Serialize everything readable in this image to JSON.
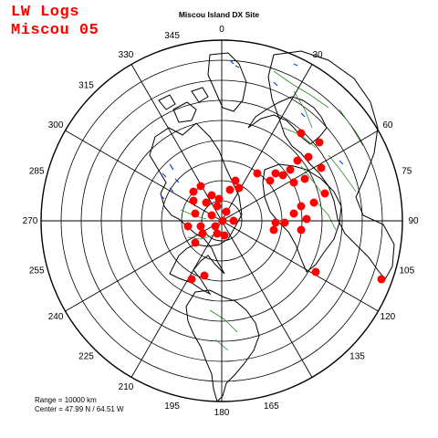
{
  "header": {
    "title_line1": "LW Logs",
    "title_line2": "Miscou 05",
    "site_title": "Miscou Island DX Site"
  },
  "map": {
    "projection": "azimuthal-equidistant",
    "range_circles": 9,
    "center_label": "Center = 47.99 N / 64.51 W",
    "range_label": "Range = 10000 km",
    "bearings": [
      "0",
      "30",
      "60",
      "75",
      "90",
      "105",
      "120",
      "135",
      "165",
      "180",
      "195",
      "210",
      "225",
      "240",
      "255",
      "270",
      "285",
      "300",
      "315",
      "330",
      "345"
    ],
    "colors": {
      "range_rings": "#000000",
      "coastline": "#000000",
      "borders": "#2e8b2e",
      "lakes": "#1a3fd6",
      "logged_stations": "#ff0000"
    },
    "marker_icon": "red-dot"
  },
  "footer": {
    "range": "Range = 10000 km",
    "center": "Center = 47.99 N / 64.51 W"
  }
}
